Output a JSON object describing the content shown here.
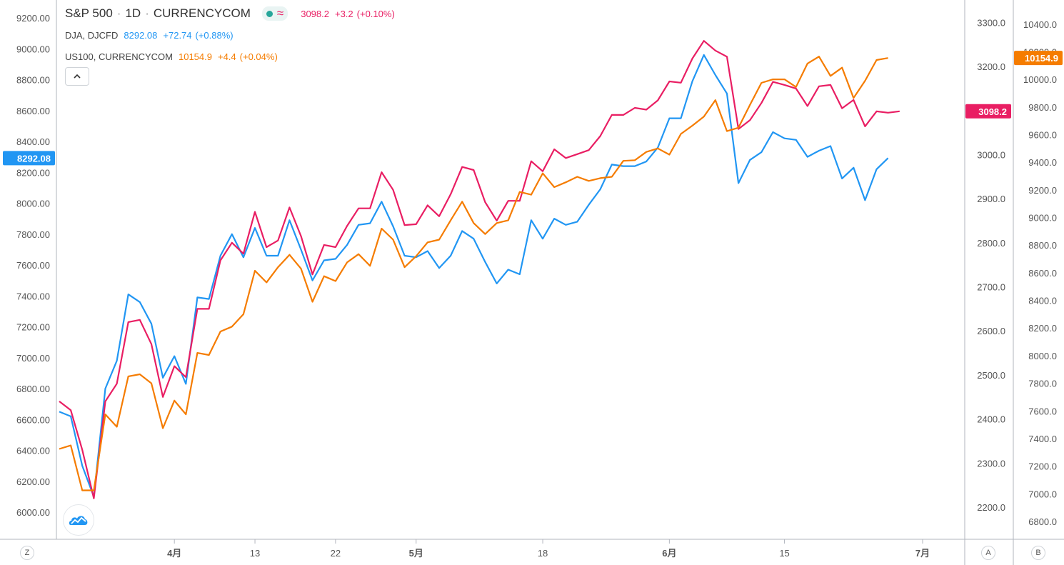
{
  "legend": {
    "main": {
      "symbol": "S&P 500",
      "interval": "1D",
      "source": "CURRENCYCOM",
      "price": "3098.2",
      "change": "+3.2",
      "pct": "(+0.10%)",
      "color": "#e91e63"
    },
    "series2": {
      "label": "DJA, DJCFD",
      "price": "8292.08",
      "change": "+72.74",
      "pct": "(+0.88%)",
      "color": "#2196f3"
    },
    "series3": {
      "label": "US100, CURRENCYCOM",
      "price": "10154.9",
      "change": "+4.4",
      "pct": "(+0.04%)",
      "color": "#f57c00"
    }
  },
  "axis_buttons": {
    "left": "Z",
    "a": "A",
    "b": "B"
  },
  "chart_data": {
    "type": "line",
    "x_tick_labels": [
      "4月",
      "13",
      "22",
      "5月",
      "18",
      "6月",
      "15",
      "7月"
    ],
    "x_tick_index": [
      10,
      17,
      24,
      31,
      42,
      53,
      63,
      75
    ],
    "axes": {
      "left": {
        "ticks": [
          6000,
          6200,
          6400,
          6600,
          6800,
          7000,
          7200,
          7400,
          7600,
          7800,
          8000,
          8200,
          8400,
          8600,
          8800,
          9000,
          9200
        ],
        "format": "2dp",
        "current": "8292.08",
        "current_color": "#2196f3"
      },
      "a": {
        "ticks": [
          2200,
          2300,
          2400,
          2500,
          2600,
          2700,
          2800,
          2900,
          3000,
          3100,
          3200,
          3300
        ],
        "format": "1dp",
        "current": "3098.2",
        "current_color": "#e91e63"
      },
      "b": {
        "ticks": [
          6800,
          7000,
          7200,
          7400,
          7600,
          7800,
          8000,
          8200,
          8400,
          8600,
          8800,
          9000,
          9200,
          9400,
          9600,
          9800,
          10000,
          10200,
          10400
        ],
        "format": "1dp",
        "current": "10154.9",
        "current_color": "#f57c00"
      }
    },
    "series": [
      {
        "name": "DJA, DJCFD",
        "axis": "left",
        "color": "#2196f3",
        "values": [
          6650,
          6620,
          6300,
          6100,
          6800,
          6980,
          7410,
          7360,
          7220,
          6870,
          7010,
          6830,
          7390,
          7380,
          7660,
          7800,
          7650,
          7840,
          7660,
          7660,
          7890,
          7700,
          7500,
          7630,
          7640,
          7730,
          7860,
          7870,
          8010,
          7850,
          7660,
          7650,
          7690,
          7580,
          7660,
          7820,
          7770,
          7620,
          7480,
          7570,
          7540,
          7890,
          7770,
          7900,
          7860,
          7880,
          7990,
          8090,
          8250,
          8240,
          8240,
          8270,
          8360,
          8550,
          8550,
          8790,
          8960,
          8830,
          8710,
          8130,
          8280,
          8330,
          8460,
          8420,
          8410,
          8300,
          8340,
          8370,
          8160,
          8230,
          8020,
          8220,
          8292.08
        ]
      },
      {
        "name": "S&P 500, 1D, CURRENCYCOM",
        "axis": "a",
        "color": "#e91e63",
        "values": [
          2440,
          2420,
          2330,
          2220,
          2440,
          2480,
          2620,
          2625,
          2570,
          2450,
          2520,
          2495,
          2650,
          2650,
          2760,
          2800,
          2775,
          2870,
          2790,
          2805,
          2880,
          2815,
          2728,
          2795,
          2790,
          2838,
          2878,
          2878,
          2960,
          2920,
          2840,
          2842,
          2885,
          2860,
          2910,
          2972,
          2965,
          2892,
          2850,
          2895,
          2895,
          2985,
          2962,
          3012,
          2992,
          3001,
          3010,
          3042,
          3090,
          3090,
          3106,
          3102,
          3123,
          3166,
          3163,
          3218,
          3258,
          3236,
          3222,
          3058,
          3078,
          3117,
          3165,
          3158,
          3150,
          3110,
          3155,
          3158,
          3105,
          3124,
          3064,
          3098,
          3095,
          3098.2
        ]
      },
      {
        "name": "US100, CURRENCYCOM",
        "axis": "b",
        "color": "#f57c00",
        "values": [
          7325,
          7350,
          7025,
          7025,
          7575,
          7485,
          7850,
          7865,
          7800,
          7475,
          7675,
          7575,
          8020,
          8005,
          8175,
          8210,
          8300,
          8615,
          8530,
          8640,
          8730,
          8630,
          8390,
          8575,
          8540,
          8675,
          8735,
          8650,
          8920,
          8840,
          8640,
          8720,
          8820,
          8840,
          8980,
          9115,
          8960,
          8880,
          8960,
          8980,
          9185,
          9165,
          9320,
          9220,
          9255,
          9295,
          9265,
          9285,
          9295,
          9410,
          9415,
          9475,
          9500,
          9455,
          9605,
          9665,
          9730,
          9850,
          9625,
          9650,
          9815,
          9975,
          10000,
          10000,
          9945,
          10115,
          10165,
          10025,
          10085,
          9865,
          9990,
          10140,
          10154.9
        ]
      }
    ]
  }
}
